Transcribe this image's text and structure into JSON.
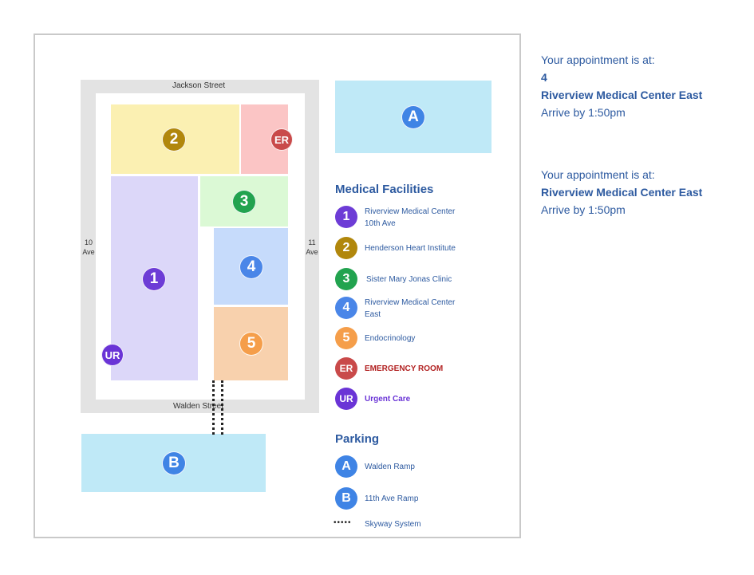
{
  "map": {
    "streets": {
      "north": "Jackson Street",
      "south": "Walden Street",
      "west_line1": "10",
      "west_line2": "Ave",
      "east_line1": "11",
      "east_line2": "Ave"
    },
    "markers": {
      "b1": "1",
      "b2": "2",
      "b3": "3",
      "b4": "4",
      "b5": "5",
      "er": "ER",
      "ur": "UR",
      "parking_a": "A",
      "parking_b": "B"
    },
    "colors": {
      "building_1": "#dcd7f9",
      "building_2": "#fbf0b2",
      "building_3": "#dbf9d5",
      "building_4": "#c6dbfb",
      "building_5": "#f8d1ad",
      "er_building": "#fbc5c5",
      "parking": "#bfe9f7",
      "street": "#e3e3e3",
      "marker_1": "#6d3cd6",
      "marker_2": "#b1870c",
      "marker_3": "#22a34f",
      "marker_4": "#4a86e8",
      "marker_5": "#f59e4a",
      "marker_er": "#c94a4a",
      "marker_ur": "#6a34d6",
      "marker_parking": "#3f84e5"
    }
  },
  "legend": {
    "facilities_heading": "Medical Facilities",
    "facilities": [
      {
        "marker": "1",
        "line1": "Riverview Medical Center",
        "line2": "10th Ave"
      },
      {
        "marker": "2",
        "line1": "Henderson Heart Institute",
        "line2": ""
      },
      {
        "marker": "3",
        "line1": "Sister Mary Jonas Clinic",
        "line2": ""
      },
      {
        "marker": "4",
        "line1": "Riverview Medical Center",
        "line2": "East"
      },
      {
        "marker": "5",
        "line1": "Endocrinology",
        "line2": ""
      },
      {
        "marker": "ER",
        "line1": "EMERGENCY ROOM",
        "line2": ""
      },
      {
        "marker": "UR",
        "line1": "Urgent Care",
        "line2": ""
      }
    ],
    "parking_heading": "Parking",
    "parking": [
      {
        "marker": "A",
        "label": "Walden Ramp"
      },
      {
        "marker": "B",
        "label": "11th Ave Ramp"
      }
    ],
    "skyway_label": "Skyway System",
    "skyway_symbol": "•••••"
  },
  "appointment_1": {
    "intro": "Your appointment is at:",
    "number": "4",
    "location": "Riverview Medical Center East",
    "arrive": "Arrive by 1:50pm"
  },
  "appointment_2": {
    "intro": "Your appointment is at:",
    "location": "Riverview Medical Center East",
    "arrive": "Arrive by 1:50pm"
  }
}
